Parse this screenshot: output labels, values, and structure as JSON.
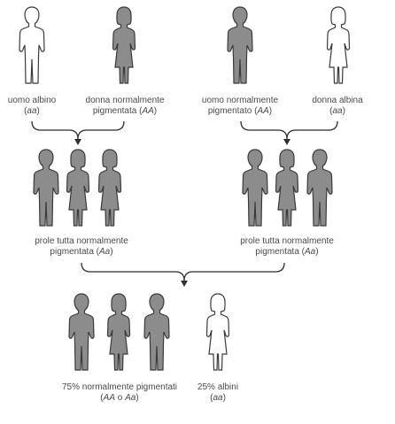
{
  "colors": {
    "filled": "#8c8c8c",
    "outline": "#3a3a3a",
    "empty": "#ffffff",
    "arrow": "#2f2f2f",
    "text": "#4a4a4a"
  },
  "parents": {
    "left_male": {
      "line1": "uomo albino",
      "line2_pre": "(",
      "genotype": "aa",
      "line2_post": ")"
    },
    "left_female": {
      "line1": "donna normalmente",
      "line2_pre": "pigmentata (",
      "genotype": "AA",
      "line2_post": ")"
    },
    "right_male": {
      "line1": "uomo normalmente",
      "line2_pre": "pigmentato (",
      "genotype": "AA",
      "line2_post": ")"
    },
    "right_female": {
      "line1": "donna albina",
      "line2_pre": "(",
      "genotype": "aa",
      "line2_post": ")"
    }
  },
  "offspring": {
    "left": {
      "line1": "prole tutta normalmente",
      "line2_pre": "pigmentata (",
      "genotype": "Aa",
      "line2_post": ")"
    },
    "right": {
      "line1": "prole tutta normalmente",
      "line2_pre": "pigmentata (",
      "genotype": "Aa",
      "line2_post": ")"
    }
  },
  "grandchildren": {
    "pigmented": {
      "line1": "75% normalmente pigmentati",
      "line2_pre": "(",
      "genotype": "AA",
      "line2_mid": " o ",
      "genotype2": "Aa",
      "line2_post": ")"
    },
    "albino": {
      "line1": "25% albini",
      "line2_pre": "(",
      "genotype": "aa",
      "line2_post": ")"
    }
  }
}
